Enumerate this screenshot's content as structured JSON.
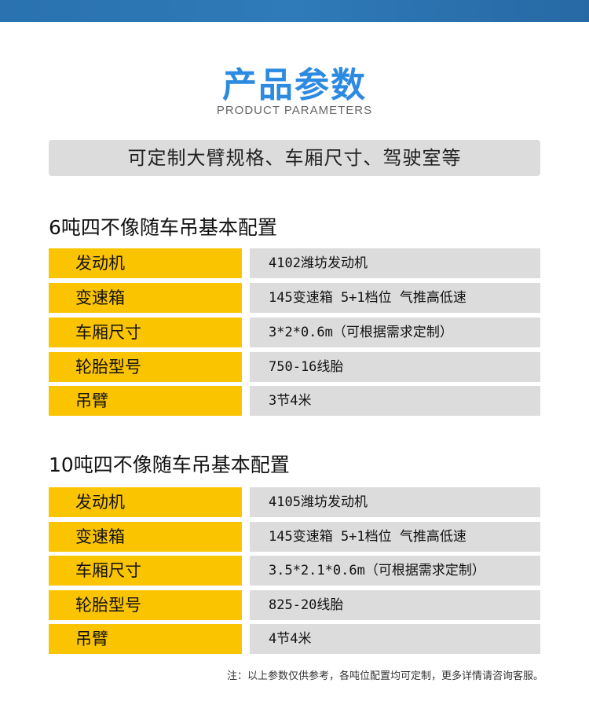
{
  "header": {
    "title": "产品参数",
    "subtitle": "PRODUCT PARAMETERS",
    "banner": "可定制大臂规格、车厢尺寸、驾驶室等"
  },
  "sections": [
    {
      "title": "6吨四不像随车吊基本配置",
      "rows": [
        {
          "label": "发动机",
          "value": "4102潍坊发动机"
        },
        {
          "label": "变速箱",
          "value": "145变速箱 5+1档位 气推高低速"
        },
        {
          "label": "车厢尺寸",
          "value": "3*2*0.6m（可根据需求定制）"
        },
        {
          "label": "轮胎型号",
          "value": "750-16线胎"
        },
        {
          "label": "吊臂",
          "value": "3节4米"
        }
      ]
    },
    {
      "title": "10吨四不像随车吊基本配置",
      "rows": [
        {
          "label": "发动机",
          "value": "4105潍坊发动机"
        },
        {
          "label": "变速箱",
          "value": "145变速箱 5+1档位 气推高低速"
        },
        {
          "label": "车厢尺寸",
          "value": "3.5*2.1*0.6m（可根据需求定制）"
        },
        {
          "label": "轮胎型号",
          "value": "825-20线胎"
        },
        {
          "label": "吊臂",
          "value": "4节4米"
        }
      ]
    }
  ],
  "note": "注：以上参数仅供参考，各吨位配置均可定制，更多详情请咨询客服。",
  "colors": {
    "accent": "#2c8ae0",
    "label_bg": "#fbc400",
    "value_bg": "#dcdcdc",
    "topbar": "#2a72b0"
  }
}
